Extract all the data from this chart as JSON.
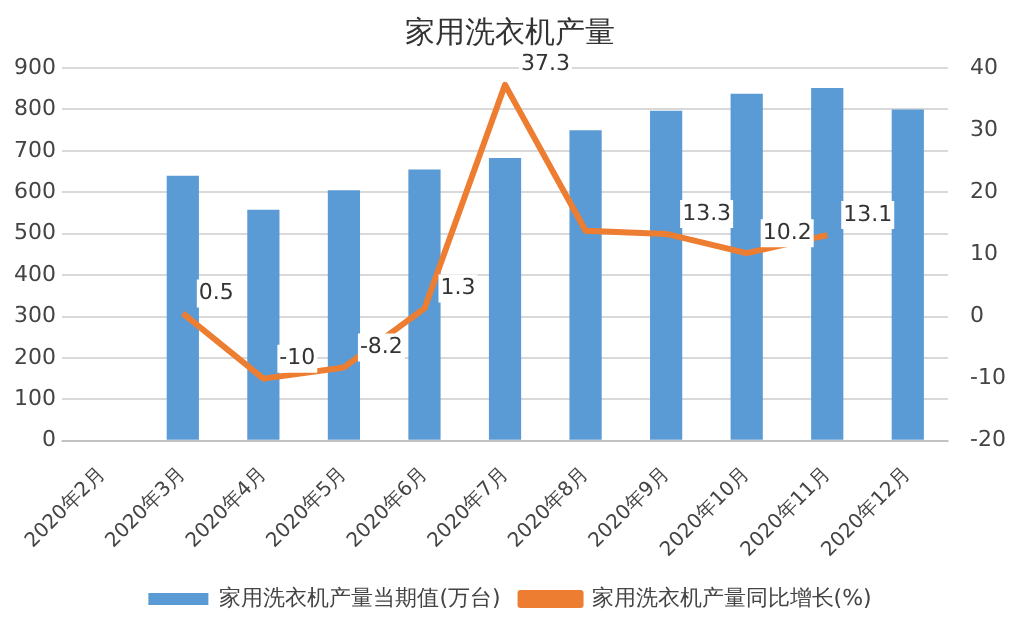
{
  "chart_data": {
    "type": "bar",
    "title": "家用洗衣机产量",
    "categories": [
      "2020年2月",
      "2020年3月",
      "2020年4月",
      "2020年5月",
      "2020年6月",
      "2020年7月",
      "2020年8月",
      "2020年9月",
      "2020年10月",
      "2020年11月",
      "2020年12月"
    ],
    "series": [
      {
        "name": "家用洗衣机产量当期值(万台)",
        "color": "#5b9bd5",
        "values": [
          null,
          640,
          558,
          605,
          655,
          683,
          750,
          797,
          838,
          852,
          800
        ]
      },
      {
        "name": "家用洗衣机产量同比增长(%)",
        "type": "line",
        "axis": "y2",
        "color": "#ed7d31",
        "values": [
          null,
          0.5,
          -10,
          -8.2,
          1.3,
          37.3,
          13.8,
          13.3,
          10.2,
          13.1,
          null
        ],
        "value_labels": [
          null,
          "0.5",
          "-10",
          "-8.2",
          "1.3",
          "37.3",
          null,
          "13.3",
          "10.2",
          "13.1",
          null
        ]
      }
    ],
    "ylim": [
      0,
      900
    ],
    "yticks": [
      0,
      100,
      200,
      300,
      400,
      500,
      600,
      700,
      800,
      900
    ],
    "y2lim": [
      -20,
      40
    ],
    "y2ticks": [
      -20,
      -10,
      0,
      10,
      20,
      30,
      40
    ],
    "grid": "y",
    "legend": "bottom",
    "marker": "none"
  }
}
